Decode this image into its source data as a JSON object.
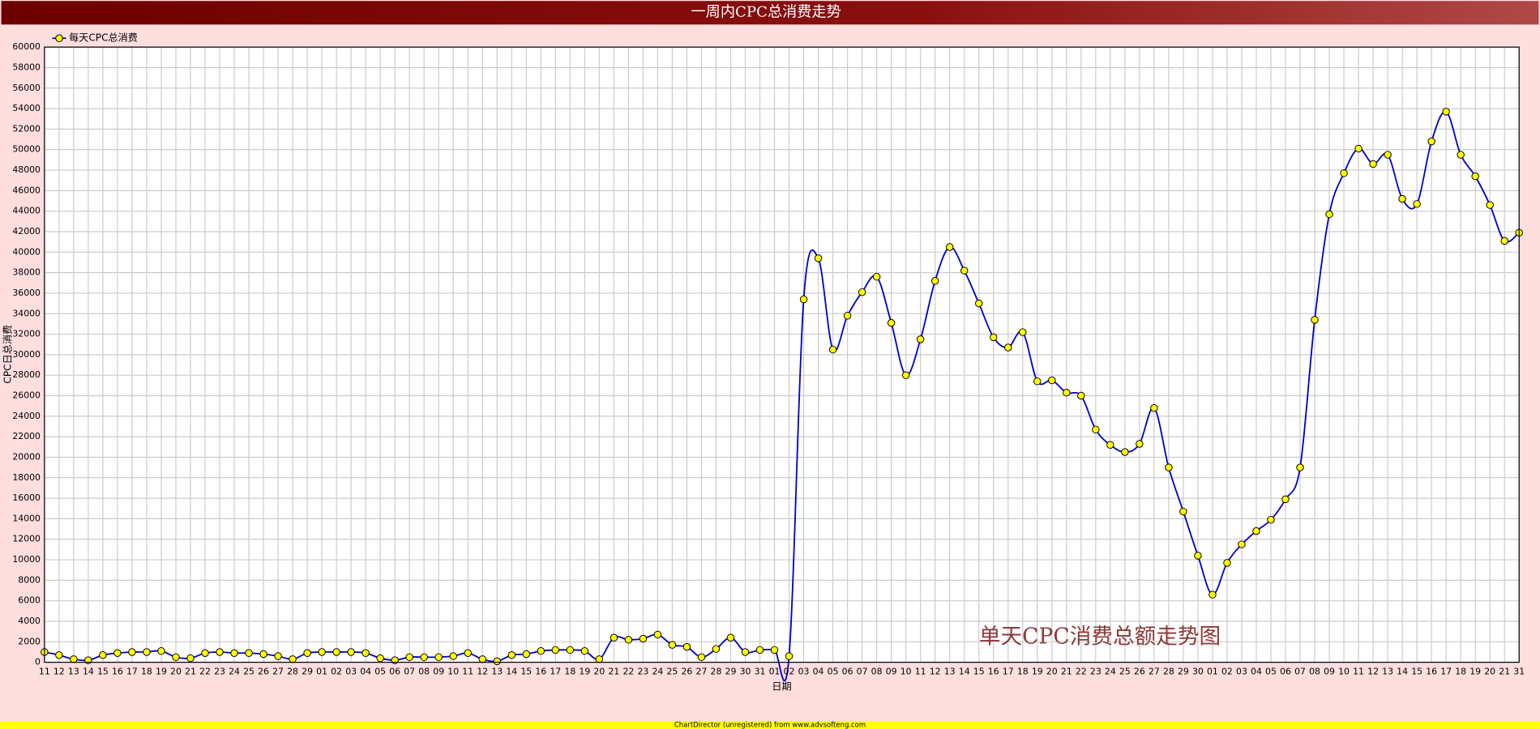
{
  "chart_data": {
    "type": "line",
    "title": "一周内CPC总消费走势",
    "y_label": "CPC日总消费",
    "x_label": "日期",
    "annotation": "单天CPC消费总额走势图",
    "footer": "ChartDirector (unregistered) from www.advsofteng.com",
    "legend": "top-left",
    "grid": true,
    "categories": [
      "11",
      "12",
      "13",
      "14",
      "15",
      "16",
      "17",
      "18",
      "19",
      "20",
      "21",
      "22",
      "23",
      "24",
      "25",
      "26",
      "27",
      "28",
      "29",
      "01",
      "02",
      "03",
      "04",
      "05",
      "06",
      "07",
      "08",
      "09",
      "10",
      "11",
      "12",
      "13",
      "14",
      "15",
      "16",
      "17",
      "18",
      "19",
      "20",
      "21",
      "22",
      "23",
      "24",
      "25",
      "26",
      "27",
      "28",
      "29",
      "30",
      "31",
      "01",
      "02",
      "03",
      "04",
      "05",
      "06",
      "07",
      "08",
      "09",
      "10",
      "11",
      "12",
      "13",
      "14",
      "15",
      "16",
      "17",
      "18",
      "19",
      "20",
      "21",
      "22",
      "23",
      "24",
      "25",
      "26",
      "27",
      "28",
      "29",
      "30",
      "01",
      "02",
      "03",
      "04",
      "05",
      "06",
      "07",
      "08",
      "09",
      "10",
      "11",
      "12",
      "13",
      "14",
      "15",
      "16",
      "17",
      "18",
      "19",
      "20",
      "21",
      "31"
    ],
    "series": [
      {
        "name": "每天CPC总消费",
        "color": "#0000cc",
        "marker_color": "#ffff00",
        "values": [
          1000,
          700,
          300,
          200,
          700,
          900,
          1000,
          1000,
          1100,
          500,
          400,
          900,
          1000,
          900,
          900,
          800,
          600,
          300,
          900,
          1000,
          1000,
          1000,
          900,
          400,
          200,
          500,
          500,
          500,
          600,
          900,
          300,
          100,
          700,
          800,
          1100,
          1200,
          1200,
          1100,
          300,
          2400,
          2200,
          2300,
          2700,
          1700,
          1500,
          500,
          1300,
          2400,
          1000,
          1200,
          1200,
          600,
          35400,
          39400,
          30500,
          33800,
          36100,
          37600,
          33100,
          28000,
          31500,
          37200,
          40500,
          38200,
          35000,
          31700,
          30700,
          32200,
          27400,
          27500,
          26300,
          26000,
          22700,
          21200,
          20500,
          21300,
          24800,
          19000,
          14700,
          10400,
          6600,
          9700,
          11500,
          12800,
          13900,
          15900,
          19000,
          33400,
          43700,
          47700,
          50100,
          48600,
          49500,
          45200,
          44700,
          50800,
          53700,
          49500,
          47400,
          44600,
          41100,
          41900
        ]
      }
    ],
    "ylim": [
      0,
      60000
    ],
    "yticks": [
      0,
      2000,
      4000,
      6000,
      8000,
      10000,
      12000,
      14000,
      16000,
      18000,
      20000,
      22000,
      24000,
      26000,
      28000,
      30000,
      32000,
      34000,
      36000,
      38000,
      40000,
      42000,
      44000,
      46000,
      48000,
      50000,
      52000,
      54000,
      56000,
      58000,
      60000
    ]
  }
}
